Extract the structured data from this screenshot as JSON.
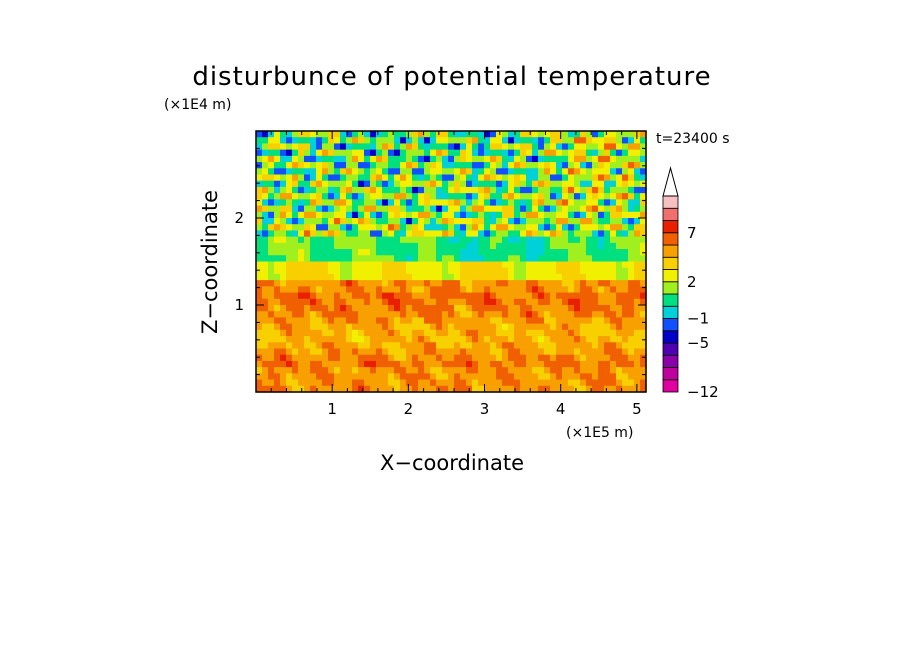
{
  "chart_data": {
    "type": "heatmap",
    "title": "disturbunce of potential temperature",
    "time_label": "t=23400 s",
    "xlabel": "X−coordinate",
    "ylabel": "Z−coordinate",
    "x_unit": "(×1E5 m)",
    "y_unit": "(×1E4 m)",
    "xlim": [
      0,
      5.12
    ],
    "ylim": [
      0,
      3.0
    ],
    "x_ticks": [
      1,
      2,
      3,
      4,
      5
    ],
    "x_tick_labels": [
      "1",
      "2",
      "3",
      "4",
      "5"
    ],
    "y_ticks": [
      1,
      2
    ],
    "y_tick_labels": [
      "1",
      "2"
    ],
    "colorbar": {
      "labels": [
        {
          "value": 7,
          "text": "7"
        },
        {
          "value": 2,
          "text": "2"
        },
        {
          "value": -1,
          "text": "−1"
        },
        {
          "value": -5,
          "text": "−5"
        },
        {
          "value": -12,
          "text": "−12"
        }
      ],
      "colors": [
        "#e000a0",
        "#c0009c",
        "#8a00a8",
        "#5000b0",
        "#0000c8",
        "#1050ff",
        "#00d0d8",
        "#00e080",
        "#a0f020",
        "#f0f000",
        "#f8d000",
        "#f8a000",
        "#f06000",
        "#e82000",
        "#f07070",
        "#f8c0c0"
      ],
      "extend_top_color": "#ffffff"
    }
  }
}
